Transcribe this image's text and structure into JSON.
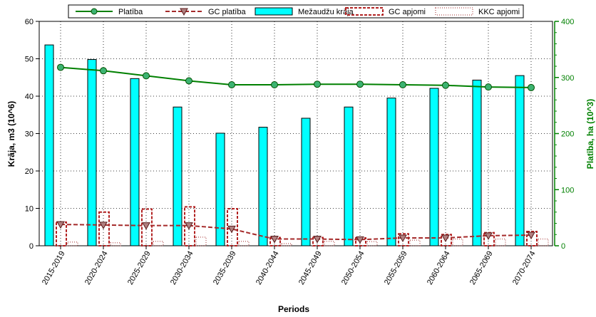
{
  "chart_data": {
    "type": "bar",
    "categories": [
      "2015-2019",
      "2020-2024",
      "2025-2029",
      "2030-2034",
      "2035-2039",
      "2040-2044",
      "2045-2049",
      "2050-2054",
      "2055-2059",
      "2060-2064",
      "2065-2069",
      "2070-2074"
    ],
    "xlabel": "Periods",
    "ylabel_left": "Krāja, m3 (10^6)",
    "ylabel_right": "Platība, ha (10^3)",
    "ylim_left": [
      0,
      60
    ],
    "yticks_left": [
      0,
      10,
      20,
      30,
      40,
      50,
      60
    ],
    "ylim_right": [
      0,
      400
    ],
    "yticks_right": [
      0,
      100,
      200,
      300,
      400
    ],
    "grid": true,
    "legend_position": "top",
    "legend": [
      "Platība",
      "GC platība",
      "Mežaudžu krāja",
      "GC apjomi",
      "KKC apjomi"
    ],
    "series": [
      {
        "name": "Mežaudžu krāja",
        "kind": "bar",
        "axis": "left",
        "color": "#00ffff",
        "values": [
          53.7,
          49.8,
          44.7,
          37.1,
          30.1,
          31.7,
          34.1,
          37.1,
          39.5,
          42.1,
          44.3,
          45.5
        ]
      },
      {
        "name": "GC apjomi",
        "kind": "bar-dashed",
        "axis": "left",
        "color": "#b22222",
        "values": [
          6.3,
          9.0,
          9.8,
          10.4,
          9.9,
          2.2,
          2.2,
          2.1,
          3.2,
          3.0,
          3.5,
          3.8
        ]
      },
      {
        "name": "KKC apjomi",
        "kind": "bar-dotted",
        "axis": "left",
        "color": "#c07070",
        "values": [
          1.0,
          0.8,
          1.2,
          2.3,
          1.2,
          0.6,
          1.2,
          1.1,
          1.5,
          1.8,
          1.8,
          1.8
        ]
      },
      {
        "name": "Platība",
        "kind": "line",
        "axis": "right",
        "color": "#008000",
        "marker_fill": "#3cb371",
        "values": [
          318,
          312,
          303,
          294,
          287,
          287,
          288,
          288,
          287,
          286,
          283,
          282
        ]
      },
      {
        "name": "GC platība",
        "kind": "line-dashed",
        "axis": "right",
        "color": "#a52a2a",
        "marker_fill": "#b08080",
        "values": [
          38,
          37,
          36,
          36,
          30,
          12,
          12,
          11,
          14,
          14,
          18,
          19
        ]
      }
    ]
  }
}
